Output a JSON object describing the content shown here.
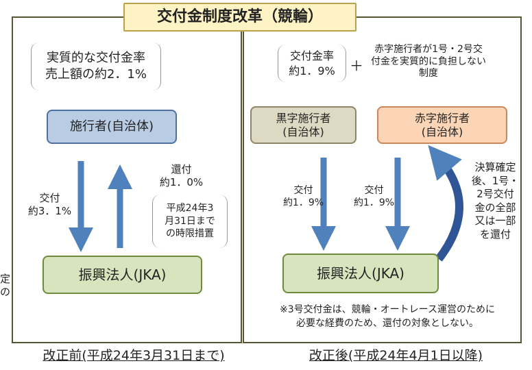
{
  "title": "交付金制度改革（競輪）",
  "edge_fragment": "定\nの",
  "left_panel": {
    "rate_note": "実質的な交付金率\n売上額の約2．1%",
    "source": "施行者(自治体)",
    "down_label": "交付\n約3．1%",
    "up_label": "還付\n約1．0%",
    "time_note": "平成24年3\n月31日まで\nの時限措置",
    "target": "振興法人(JKA)",
    "caption": "改正前(平成24年3月31日まで)"
  },
  "right_panel": {
    "rate_note": "交付金率\n約1．9%",
    "plus": "＋",
    "system_note": "赤字施行者が1号・2号交\n付金を実質的に負担しない\n制度",
    "surplus_source": "黒字施行者\n(自治体)",
    "deficit_source": "赤字施行者\n(自治体)",
    "surplus_label": "交付\n約1．9%",
    "deficit_label": "交付\n約1．9%",
    "refund_note": "決算確定\n後、1号・\n2号交付\n金の全部\n又は一部\nを還付",
    "target": "振興法人(JKA)",
    "footnote": "※3号交付金は、競輪・オートレース運営のために\n必要な経費のため、還付の対象としない。",
    "caption": "改正後(平成24年4月1日以降)"
  }
}
